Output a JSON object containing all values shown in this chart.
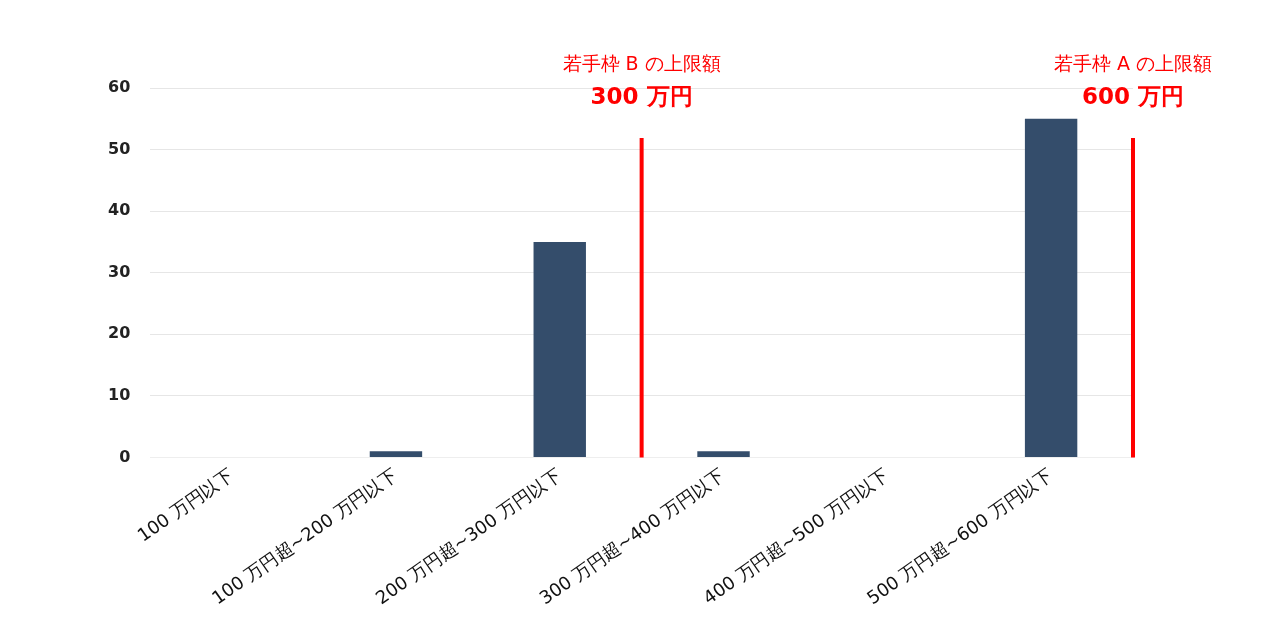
{
  "chart_data": {
    "type": "bar",
    "categories": [
      "100 万円以下",
      "100 万円超~200 万円以下",
      "200 万円超~300 万円以下",
      "300 万円超~400 万円以下",
      "400 万円超~500 万円以下",
      "500 万円超~600 万円以下"
    ],
    "values": [
      0,
      1,
      35,
      1,
      0,
      55
    ],
    "color": "#344d6b",
    "ylim": [
      0,
      60
    ],
    "yticks": [
      0,
      10,
      20,
      30,
      40,
      50,
      60
    ],
    "grid": "y",
    "legend": false,
    "ref_lines": [
      {
        "axis": "x",
        "value": "200 万円超~300 万円以下",
        "label": "若手枠 B の上限額\n300 万円",
        "color": "#ff0000"
      },
      {
        "axis": "x",
        "value": "500 万円超~600 万円以下",
        "label": "若手枠 A の上限額\n600 万円",
        "color": "#ff0000"
      }
    ]
  }
}
